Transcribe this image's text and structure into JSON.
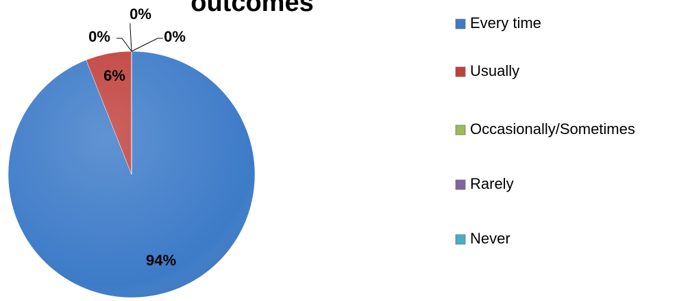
{
  "chart_data": {
    "type": "pie",
    "title": "outcomes",
    "categories": [
      "Every time",
      "Usually",
      "Occasionally/Sometimes",
      "Rarely",
      "Never"
    ],
    "values": [
      94,
      6,
      0,
      0,
      0
    ],
    "value_labels": [
      "94%",
      "6%",
      "0%",
      "0%",
      "0%"
    ],
    "colors": [
      "#3d7bc8",
      "#c0403c",
      "#9bbb59",
      "#8064a2",
      "#4bacc6"
    ],
    "legend": "right"
  }
}
